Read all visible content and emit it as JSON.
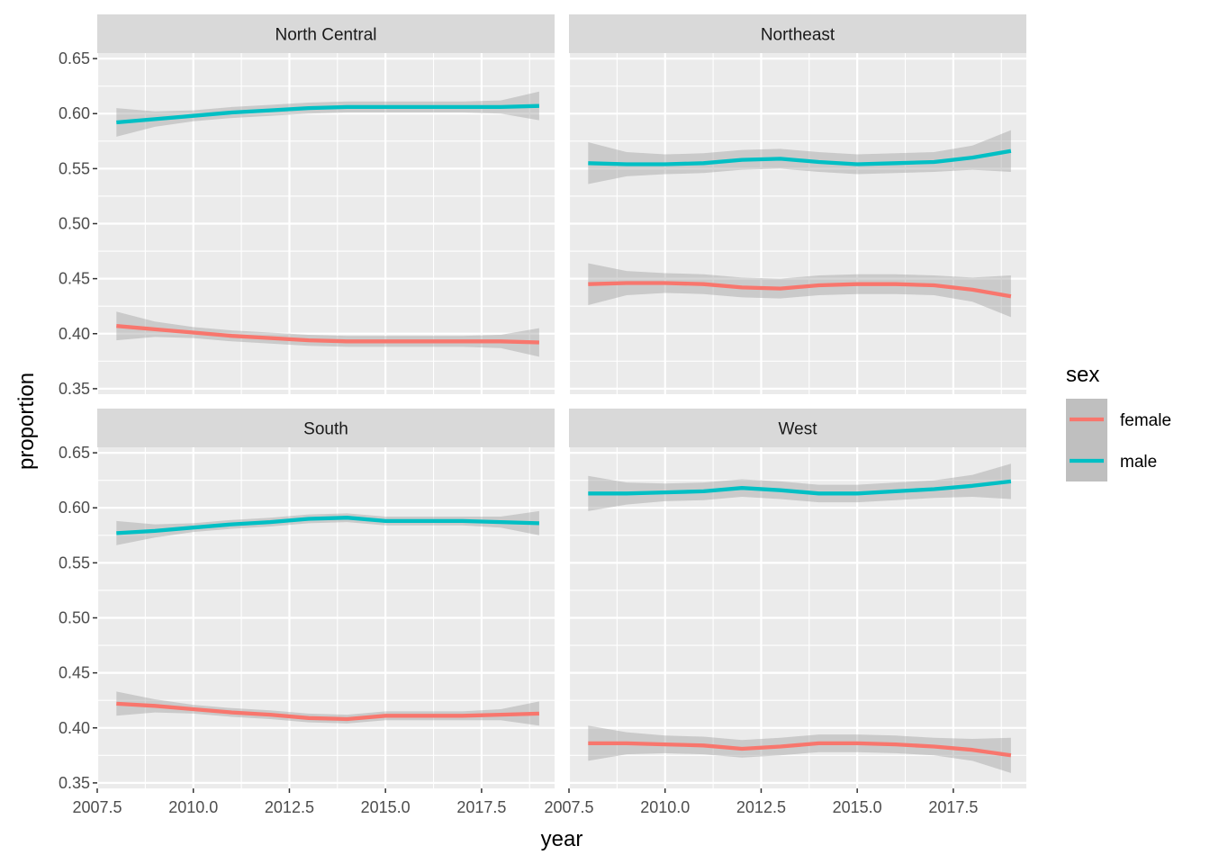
{
  "chart_data": {
    "type": "line",
    "xlabel": "year",
    "ylabel": "proportion",
    "xlim": [
      2007.5,
      2019.4
    ],
    "ylim": [
      0.345,
      0.655
    ],
    "x_ticks": [
      2007.5,
      2010.0,
      2012.5,
      2015.0,
      2017.5
    ],
    "x_tick_labels": [
      "2007.5",
      "2010.0",
      "2012.5",
      "2015.0",
      "2017.5"
    ],
    "y_ticks": [
      0.35,
      0.4,
      0.45,
      0.5,
      0.55,
      0.6,
      0.65
    ],
    "y_tick_labels": [
      "0.35",
      "0.40",
      "0.45",
      "0.50",
      "0.55",
      "0.60",
      "0.65"
    ],
    "grid": true,
    "legend": {
      "title": "sex",
      "position": "right",
      "entries": [
        {
          "label": "female",
          "color": "#F8766D"
        },
        {
          "label": "male",
          "color": "#00BFC4"
        }
      ]
    },
    "facets": [
      {
        "label": "North Central",
        "x": [
          2008,
          2009,
          2010,
          2011,
          2012,
          2013,
          2014,
          2015,
          2016,
          2017,
          2018,
          2019
        ],
        "series": [
          {
            "name": "female",
            "color": "#F8766D",
            "values": [
              0.407,
              0.404,
              0.401,
              0.398,
              0.396,
              0.394,
              0.393,
              0.393,
              0.393,
              0.393,
              0.393,
              0.392
            ]
          },
          {
            "name": "male",
            "color": "#00BFC4",
            "values": [
              0.592,
              0.595,
              0.598,
              0.601,
              0.603,
              0.605,
              0.606,
              0.606,
              0.606,
              0.606,
              0.606,
              0.607
            ]
          }
        ],
        "band_halfwidth": [
          0.013,
          0.007,
          0.005,
          0.005,
          0.005,
          0.005,
          0.005,
          0.005,
          0.005,
          0.005,
          0.006,
          0.013
        ]
      },
      {
        "label": "Northeast",
        "x": [
          2008,
          2009,
          2010,
          2011,
          2012,
          2013,
          2014,
          2015,
          2016,
          2017,
          2018,
          2019
        ],
        "series": [
          {
            "name": "female",
            "color": "#F8766D",
            "values": [
              0.445,
              0.446,
              0.446,
              0.445,
              0.442,
              0.441,
              0.444,
              0.445,
              0.445,
              0.444,
              0.44,
              0.434
            ]
          },
          {
            "name": "male",
            "color": "#00BFC4",
            "values": [
              0.555,
              0.554,
              0.554,
              0.555,
              0.558,
              0.559,
              0.556,
              0.554,
              0.555,
              0.556,
              0.56,
              0.566
            ]
          }
        ],
        "band_halfwidth": [
          0.019,
          0.011,
          0.009,
          0.009,
          0.009,
          0.009,
          0.009,
          0.009,
          0.009,
          0.009,
          0.011,
          0.019
        ]
      },
      {
        "label": "South",
        "x": [
          2008,
          2009,
          2010,
          2011,
          2012,
          2013,
          2014,
          2015,
          2016,
          2017,
          2018,
          2019
        ],
        "series": [
          {
            "name": "female",
            "color": "#F8766D",
            "values": [
              0.422,
              0.42,
              0.417,
              0.414,
              0.412,
              0.409,
              0.408,
              0.411,
              0.411,
              0.411,
              0.412,
              0.413
            ]
          },
          {
            "name": "male",
            "color": "#00BFC4",
            "values": [
              0.577,
              0.579,
              0.582,
              0.585,
              0.587,
              0.59,
              0.591,
              0.588,
              0.588,
              0.588,
              0.587,
              0.586
            ]
          }
        ],
        "band_halfwidth": [
          0.011,
          0.006,
          0.004,
          0.004,
          0.004,
          0.004,
          0.004,
          0.004,
          0.004,
          0.004,
          0.005,
          0.011
        ]
      },
      {
        "label": "West",
        "x": [
          2008,
          2009,
          2010,
          2011,
          2012,
          2013,
          2014,
          2015,
          2016,
          2017,
          2018,
          2019
        ],
        "series": [
          {
            "name": "female",
            "color": "#F8766D",
            "values": [
              0.386,
              0.386,
              0.385,
              0.384,
              0.381,
              0.383,
              0.386,
              0.386,
              0.385,
              0.383,
              0.38,
              0.375
            ]
          },
          {
            "name": "male",
            "color": "#00BFC4",
            "values": [
              0.613,
              0.613,
              0.614,
              0.615,
              0.618,
              0.616,
              0.613,
              0.613,
              0.615,
              0.617,
              0.62,
              0.624
            ]
          }
        ],
        "band_halfwidth": [
          0.016,
          0.01,
          0.008,
          0.008,
          0.008,
          0.008,
          0.008,
          0.008,
          0.008,
          0.008,
          0.01,
          0.016
        ]
      }
    ]
  }
}
